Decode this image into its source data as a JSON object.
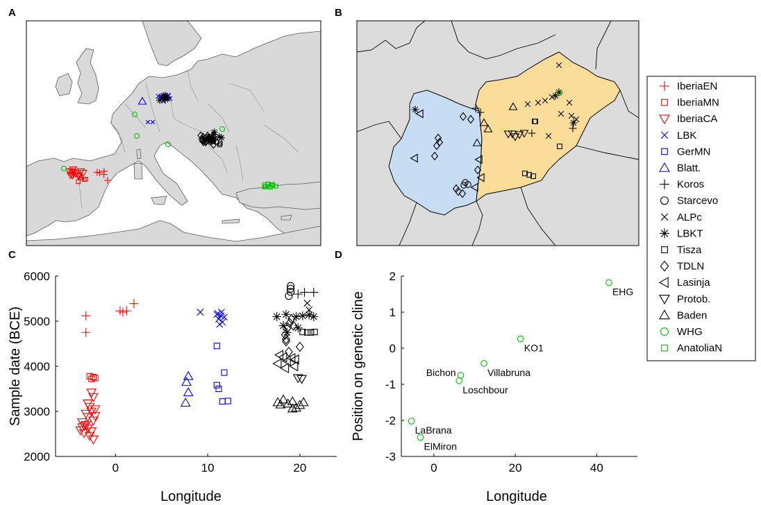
{
  "panels": {
    "a": {
      "letter": "A"
    },
    "b": {
      "letter": "B"
    },
    "c": {
      "letter": "C"
    },
    "d": {
      "letter": "D"
    }
  },
  "legend": {
    "entries": [
      {
        "label": "IberiaEN",
        "marker": "plus",
        "color": "#ff0000"
      },
      {
        "label": "IberiaMN",
        "marker": "square",
        "color": "#ff0000"
      },
      {
        "label": "IberiaCA",
        "marker": "triangle-down",
        "color": "#ff0000"
      },
      {
        "label": "LBK",
        "marker": "x",
        "color": "#0000ff"
      },
      {
        "label": "GerMN",
        "marker": "square",
        "color": "#0000ff"
      },
      {
        "label": "Blatt.",
        "marker": "triangle-up",
        "color": "#0000ff"
      },
      {
        "label": "Koros",
        "marker": "plus",
        "color": "#000000"
      },
      {
        "label": "Starcevo",
        "marker": "circle",
        "color": "#000000"
      },
      {
        "label": "ALPc",
        "marker": "x",
        "color": "#000000"
      },
      {
        "label": "LBKT",
        "marker": "asterisk",
        "color": "#000000"
      },
      {
        "label": "Tisza",
        "marker": "square",
        "color": "#000000"
      },
      {
        "label": "TDLN",
        "marker": "diamond",
        "color": "#000000"
      },
      {
        "label": "Lasinja",
        "marker": "triangle-left",
        "color": "#000000"
      },
      {
        "label": "Protob.",
        "marker": "triangle-down",
        "color": "#000000"
      },
      {
        "label": "Baden",
        "marker": "triangle-up",
        "color": "#000000"
      },
      {
        "label": "WHG",
        "marker": "circle",
        "color": "#00c000"
      },
      {
        "label": "AnatoliaN",
        "marker": "square",
        "color": "#00c000"
      }
    ]
  },
  "chart_data": [
    {
      "panel": "C",
      "type": "scatter",
      "xlabel": "Longitude",
      "ylabel": "Sample date (BCE)",
      "xlim": [
        -6.5,
        24
      ],
      "ylim": [
        2000,
        6000
      ],
      "xticks": [
        0,
        10,
        20
      ],
      "xtick_labels": [
        "0",
        "10",
        "20"
      ],
      "yticks": [
        2000,
        3000,
        4000,
        5000,
        6000
      ],
      "ytick_labels": [
        "2000",
        "3000",
        "4000",
        "5000",
        "6000"
      ],
      "series": [
        {
          "name": "IberiaEN",
          "marker": "plus",
          "color": "#ff0000",
          "points": [
            [
              -3.2,
              5120
            ],
            [
              -3.2,
              4750
            ],
            [
              0.5,
              5230
            ],
            [
              0.8,
              5200
            ],
            [
              1.2,
              5230
            ],
            [
              2,
              5390
            ]
          ]
        },
        {
          "name": "IberiaMN",
          "marker": "square",
          "color": "#ff0000",
          "points": [
            [
              -2.8,
              3780
            ],
            [
              -2.4,
              3760
            ],
            [
              -2.6,
              3720
            ],
            [
              -2.2,
              3740
            ]
          ]
        },
        {
          "name": "IberiaCA",
          "marker": "triangle-down",
          "color": "#ff0000",
          "points": [
            [
              -3.6,
              2650
            ],
            [
              -3.2,
              2700
            ],
            [
              -3.8,
              2580
            ],
            [
              -3,
              2620
            ],
            [
              -2.6,
              2560
            ],
            [
              -3.4,
              2520
            ],
            [
              -2.8,
              2460
            ],
            [
              -2.4,
              2380
            ],
            [
              -2.2,
              2900
            ],
            [
              -2.6,
              3000
            ],
            [
              -2.8,
              3100
            ],
            [
              -2.4,
              2800
            ],
            [
              -3,
              2880
            ],
            [
              -2.2,
              3050
            ],
            [
              -3.6,
              2760
            ],
            [
              -3.2,
              2950
            ],
            [
              -2.6,
              3420
            ],
            [
              -2.4,
              3320
            ],
            [
              -3,
              3180
            ],
            [
              -3.4,
              2680
            ]
          ]
        },
        {
          "name": "LBK",
          "marker": "x",
          "color": "#0000ff",
          "points": [
            [
              9.2,
              5200
            ],
            [
              11,
              5150
            ],
            [
              11.4,
              5120
            ],
            [
              11.2,
              5050
            ],
            [
              11.6,
              4980
            ],
            [
              11.1,
              5170
            ],
            [
              11.8,
              5090
            ],
            [
              11.3,
              4930
            ],
            [
              11.5,
              5200
            ]
          ]
        },
        {
          "name": "GerMN",
          "marker": "square",
          "color": "#0000ff",
          "points": [
            [
              11,
              4450
            ],
            [
              11.8,
              3860
            ],
            [
              11,
              3580
            ],
            [
              11.2,
              3500
            ],
            [
              11.6,
              3220
            ],
            [
              12.2,
              3230
            ]
          ]
        },
        {
          "name": "Blatt.",
          "marker": "triangle-up",
          "color": "#0000ff",
          "points": [
            [
              7.9,
              3780
            ],
            [
              7.7,
              3650
            ],
            [
              7.9,
              3420
            ],
            [
              7.6,
              3190
            ]
          ]
        },
        {
          "name": "Koros",
          "marker": "plus",
          "color": "#000000",
          "points": [
            [
              20.5,
              5640
            ],
            [
              21.5,
              5640
            ],
            [
              19.8,
              5600
            ]
          ]
        },
        {
          "name": "Starcevo",
          "marker": "circle",
          "color": "#000000",
          "points": [
            [
              19,
              5780
            ],
            [
              19,
              5720
            ],
            [
              19,
              5650
            ],
            [
              18.8,
              5560
            ]
          ]
        },
        {
          "name": "ALPc",
          "marker": "x",
          "color": "#000000",
          "points": [
            [
              20.8,
              5400
            ],
            [
              21,
              5250
            ]
          ]
        },
        {
          "name": "LBKT",
          "marker": "asterisk",
          "color": "#000000",
          "points": [
            [
              17.5,
              5100
            ],
            [
              18.5,
              5150
            ],
            [
              19.6,
              5100
            ],
            [
              20.3,
              5120
            ],
            [
              21,
              5140
            ],
            [
              21.5,
              5100
            ],
            [
              18.2,
              4900
            ],
            [
              19.8,
              4850
            ],
            [
              18.6,
              4750
            ]
          ]
        },
        {
          "name": "Tisza",
          "marker": "square",
          "color": "#000000",
          "points": [
            [
              20.3,
              4760
            ],
            [
              20.8,
              4750
            ],
            [
              21.2,
              4750
            ],
            [
              21.6,
              4760
            ]
          ]
        },
        {
          "name": "TDLN",
          "marker": "diamond",
          "color": "#000000",
          "points": [
            [
              18.4,
              4700
            ],
            [
              18.7,
              4860
            ],
            [
              18.9,
              4960
            ],
            [
              19.1,
              5050
            ],
            [
              18.5,
              4600
            ],
            [
              19.3,
              4900
            ],
            [
              20,
              4430
            ],
            [
              18.8,
              4320
            ],
            [
              18.5,
              4550
            ]
          ]
        },
        {
          "name": "Lasinja",
          "marker": "triangle-left",
          "color": "#000000",
          "points": [
            [
              17.8,
              4250
            ],
            [
              18.2,
              4200
            ],
            [
              18.6,
              4120
            ],
            [
              19.1,
              4180
            ],
            [
              19.5,
              4150
            ],
            [
              17.6,
              4060
            ],
            [
              18.4,
              3960
            ],
            [
              19.4,
              4000
            ]
          ]
        },
        {
          "name": "Protob.",
          "marker": "triangle-down",
          "color": "#000000",
          "points": [
            [
              19.8,
              3740
            ],
            [
              20.2,
              3720
            ]
          ]
        },
        {
          "name": "Baden",
          "marker": "triangle-up",
          "color": "#000000",
          "points": [
            [
              17.6,
              3200
            ],
            [
              18.2,
              3260
            ],
            [
              18.7,
              3170
            ],
            [
              19.2,
              3220
            ],
            [
              19.6,
              3080
            ],
            [
              20,
              3140
            ],
            [
              20.4,
              3200
            ],
            [
              19.2,
              3060
            ],
            [
              17.9,
              3150
            ]
          ]
        }
      ]
    },
    {
      "panel": "D",
      "type": "scatter",
      "xlabel": "Longitude",
      "ylabel": "Position on genetic cline",
      "xlim": [
        -8,
        50
      ],
      "ylim": [
        -3,
        2
      ],
      "xticks": [
        0,
        20,
        40
      ],
      "xtick_labels": [
        "0",
        "20",
        "40"
      ],
      "yticks": [
        -3,
        -2,
        -1,
        0,
        1,
        2
      ],
      "ytick_labels": [
        "-3",
        "-2",
        "-1",
        "0",
        "1",
        "2"
      ],
      "series": [
        {
          "name": "WHG",
          "marker": "circle",
          "color": "#00c000",
          "points": [
            {
              "x": 43,
              "y": 1.82,
              "label": "EHG",
              "pos": "below-right"
            },
            {
              "x": 21.3,
              "y": 0.26,
              "label": "KO1",
              "pos": "below-right"
            },
            {
              "x": 12.3,
              "y": -0.42,
              "label": "Villabruna",
              "pos": "below-right"
            },
            {
              "x": 6.6,
              "y": -0.75,
              "label": "Bichon",
              "pos": "left"
            },
            {
              "x": 6.2,
              "y": -0.9,
              "label": "Loschbour",
              "pos": "below-right"
            },
            {
              "x": -5.5,
              "y": -2.02,
              "label": "LaBrana",
              "pos": "below-right"
            },
            {
              "x": -3.3,
              "y": -2.47,
              "label": "ElMiron",
              "pos": "below-right"
            }
          ]
        }
      ]
    }
  ]
}
